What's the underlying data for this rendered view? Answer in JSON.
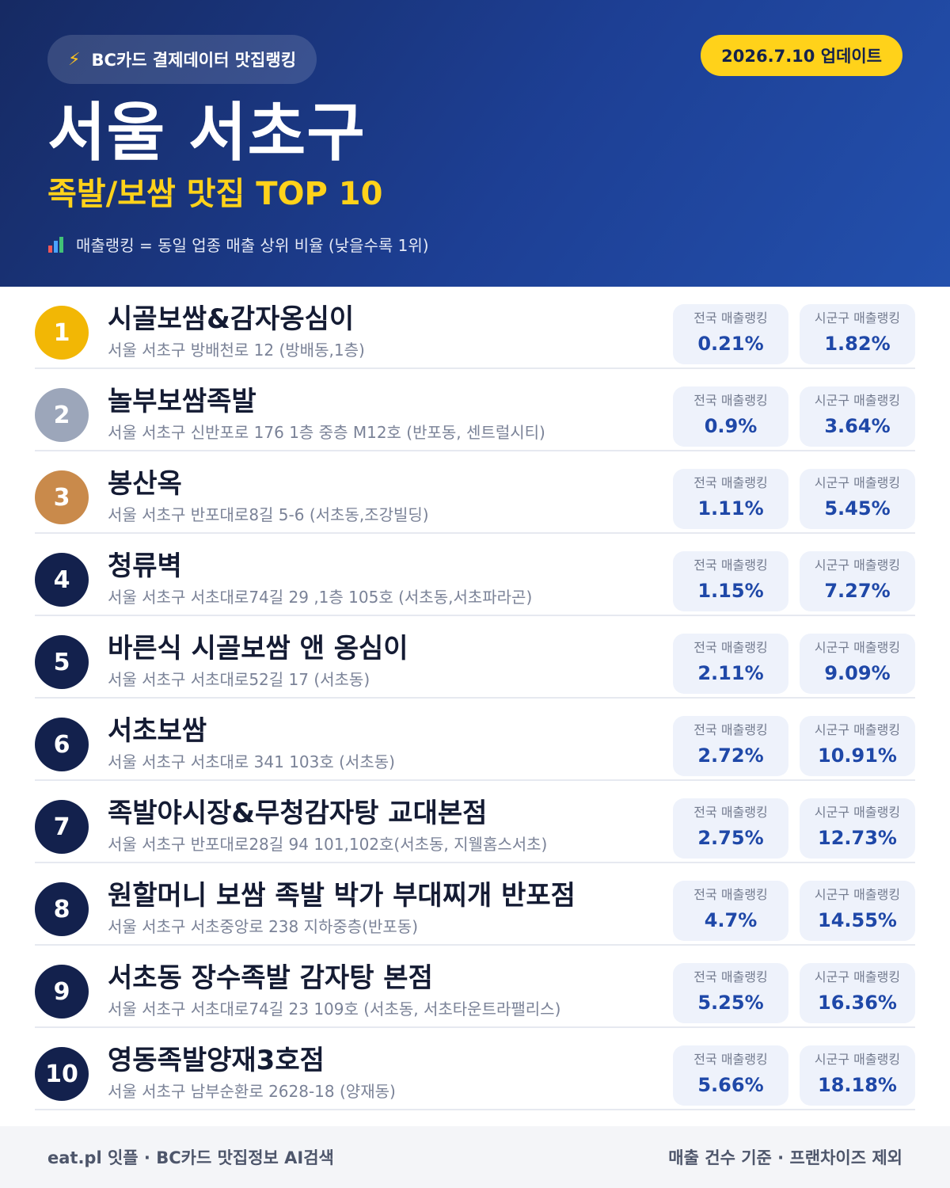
{
  "header": {
    "pill_icon": "lightning-icon",
    "pill_text": "BC카드 결제데이터 맛집랭킹",
    "update_badge": "2026.7.10 업데이트",
    "title": "서울 서초구",
    "subtitle": "족발/보쌈 맛집 TOP 10",
    "note_icon": "bar-chart-icon",
    "note": "매출랭킹 = 동일 업종 매출 상위 비율 (낮을수록 1위)"
  },
  "colors": {
    "gold": "#f2b705",
    "silver": "#9ca6ba",
    "bronze": "#c98a4b",
    "navy": "#13214d",
    "accent_yellow": "#ffd21a",
    "value_blue": "#1f48a8"
  },
  "stat_labels": {
    "national": "전국 매출랭킹",
    "district": "시군구 매출랭킹"
  },
  "items": [
    {
      "rank": "1",
      "name": "시골보쌈&감자옹심이",
      "address": "서울 서초구 방배천로 12 (방배동,1층)",
      "national": "0.21%",
      "district": "1.82%"
    },
    {
      "rank": "2",
      "name": "놀부보쌈족발",
      "address": "서울 서초구 신반포로 176 1층 중층 M12호 (반포동, 센트럴시티)",
      "national": "0.9%",
      "district": "3.64%"
    },
    {
      "rank": "3",
      "name": "봉산옥",
      "address": "서울 서초구 반포대로8길 5-6 (서초동,조강빌딩)",
      "national": "1.11%",
      "district": "5.45%"
    },
    {
      "rank": "4",
      "name": "청류벽",
      "address": "서울 서초구 서초대로74길 29 ,1층 105호 (서초동,서초파라곤)",
      "national": "1.15%",
      "district": "7.27%"
    },
    {
      "rank": "5",
      "name": "바른식 시골보쌈 앤 옹심이",
      "address": "서울 서초구 서초대로52길 17 (서초동)",
      "national": "2.11%",
      "district": "9.09%"
    },
    {
      "rank": "6",
      "name": "서초보쌈",
      "address": "서울 서초구 서초대로 341 103호 (서초동)",
      "national": "2.72%",
      "district": "10.91%"
    },
    {
      "rank": "7",
      "name": "족발야시장&무청감자탕 교대본점",
      "address": "서울 서초구 반포대로28길 94 101,102호(서초동, 지웰홈스서초)",
      "national": "2.75%",
      "district": "12.73%"
    },
    {
      "rank": "8",
      "name": "원할머니 보쌈 족발 박가 부대찌개 반포점",
      "address": "서울 서초구 서초중앙로 238 지하중층(반포동)",
      "national": "4.7%",
      "district": "14.55%"
    },
    {
      "rank": "9",
      "name": "서초동 장수족발 감자탕 본점",
      "address": "서울 서초구 서초대로74길 23 109호 (서초동, 서초타운트라팰리스)",
      "national": "5.25%",
      "district": "16.36%"
    },
    {
      "rank": "10",
      "name": "영동족발양재3호점",
      "address": "서울 서초구 남부순환로 2628-18 (양재동)",
      "national": "5.66%",
      "district": "18.18%"
    }
  ],
  "footer": {
    "left": "eat.pl 잇플 · BC카드 맛집정보 AI검색",
    "right": "매출 건수 기준 · 프랜차이즈 제외"
  }
}
